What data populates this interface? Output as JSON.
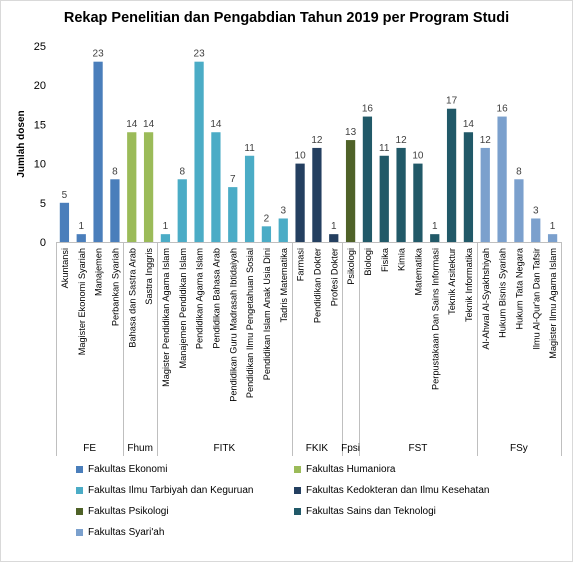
{
  "chart_data": {
    "type": "bar",
    "title": "Rekap Penelitian dan Pengabdian Tahun 2019 per Program Studi",
    "ylabel": "Jumlah dosen",
    "xlabel": "",
    "ylim": [
      0,
      25
    ],
    "yticks": [
      "0",
      "5",
      "10",
      "15",
      "20",
      "25"
    ],
    "grid": false,
    "legend_position": "bottom",
    "groups": [
      {
        "code": "FE",
        "name": "Fakultas Ekonomi",
        "color": "#4a7ebb",
        "categories": [
          "Akuntansi",
          "Magister Ekonomi Syariah",
          "Manajemen",
          "Perbankan Syariah"
        ],
        "values": [
          5,
          1,
          23,
          8
        ]
      },
      {
        "code": "Fhum",
        "name": "Fakultas Humaniora",
        "color": "#9bbb59",
        "categories": [
          "Bahasa dan Sastra Arab",
          "Sastra Inggris"
        ],
        "values": [
          14,
          14
        ]
      },
      {
        "code": "FITK",
        "name": "Fakultas Ilmu Tarbiyah dan Keguruan",
        "color": "#4bacc6",
        "categories": [
          "Magister Pendidikan Agama Islam",
          "Manajemen Pendidikan Islam",
          "Pendidikan Agama Islam",
          "Pendidikan Bahasa Arab",
          "Pendidikan Guru Madrasah Ibtidaiyah",
          "Pendidikan Ilmu Pengetahuan Sosial",
          "Pendidikan Islam Anak Usia Dini",
          "Tadris Matematika"
        ],
        "values": [
          1,
          8,
          23,
          14,
          7,
          11,
          2,
          3
        ]
      },
      {
        "code": "FKIK",
        "name": "Fakultas Kedokteran dan Ilmu Kesehatan",
        "color": "#243f60",
        "categories": [
          "Farmasi",
          "Pendidikan Dokter",
          "Profesi Dokter"
        ],
        "values": [
          10,
          12,
          1
        ]
      },
      {
        "code": "Fpsi",
        "name": "Fakultas Psikologi",
        "color": "#4f6228",
        "categories": [
          "Psikologi"
        ],
        "values": [
          13
        ]
      },
      {
        "code": "FST",
        "name": "Fakultas Sains dan Teknologi",
        "color": "#215968",
        "categories": [
          "Biologi",
          "Fisika",
          "Kimia",
          "Matematika",
          "Perpustakaan Dan Sains Informasi",
          "Teknik Arsitektur",
          "Teknik Informatika"
        ],
        "values": [
          16,
          11,
          12,
          10,
          1,
          17,
          14
        ]
      },
      {
        "code": "FSy",
        "name": "Fakultas Syari'ah",
        "color": "#7ba0cd",
        "categories": [
          "Al-Ahwal Al-Syakhshiyah",
          "Hukum Bisnis Syariah",
          "Hukum Tata Negara",
          "Ilmu Al-Qur'an Dan Tafsir",
          "Magister Ilmu Agama Islam"
        ],
        "values": [
          12,
          16,
          8,
          3,
          1
        ]
      }
    ]
  }
}
